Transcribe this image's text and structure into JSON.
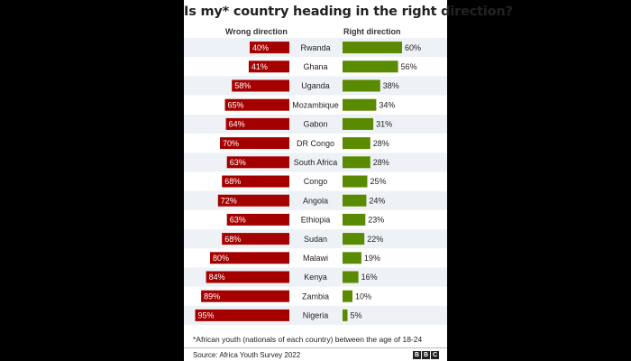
{
  "title": "Is my* country heading in the right direction?",
  "left_header": "Wrong direction",
  "right_header": "Right direction",
  "footnote": "*African youth (nationals of each country) between the age of 18-24",
  "source": "Source: Africa Youth Survey 2022",
  "logo": [
    "B",
    "B",
    "C"
  ],
  "colors": {
    "wrong": "#a50000",
    "right": "#5a8a00",
    "row_alt": "#eef2f6"
  },
  "chart_data": {
    "type": "bar",
    "categories": [
      "Rwanda",
      "Ghana",
      "Uganda",
      "Mozambique",
      "Gabon",
      "DR Congo",
      "South Africa",
      "Congo",
      "Angola",
      "Ethiopia",
      "Sudan",
      "Malawi",
      "Kenya",
      "Zambia",
      "Nigeria"
    ],
    "series": [
      {
        "name": "Wrong direction",
        "values": [
          40,
          41,
          58,
          65,
          64,
          70,
          63,
          68,
          72,
          63,
          68,
          80,
          84,
          89,
          95
        ]
      },
      {
        "name": "Right direction",
        "values": [
          60,
          56,
          38,
          34,
          31,
          28,
          28,
          25,
          24,
          23,
          22,
          19,
          16,
          10,
          5
        ]
      }
    ],
    "value_suffix": "%",
    "xlim": [
      0,
      100
    ],
    "legend": "top"
  }
}
